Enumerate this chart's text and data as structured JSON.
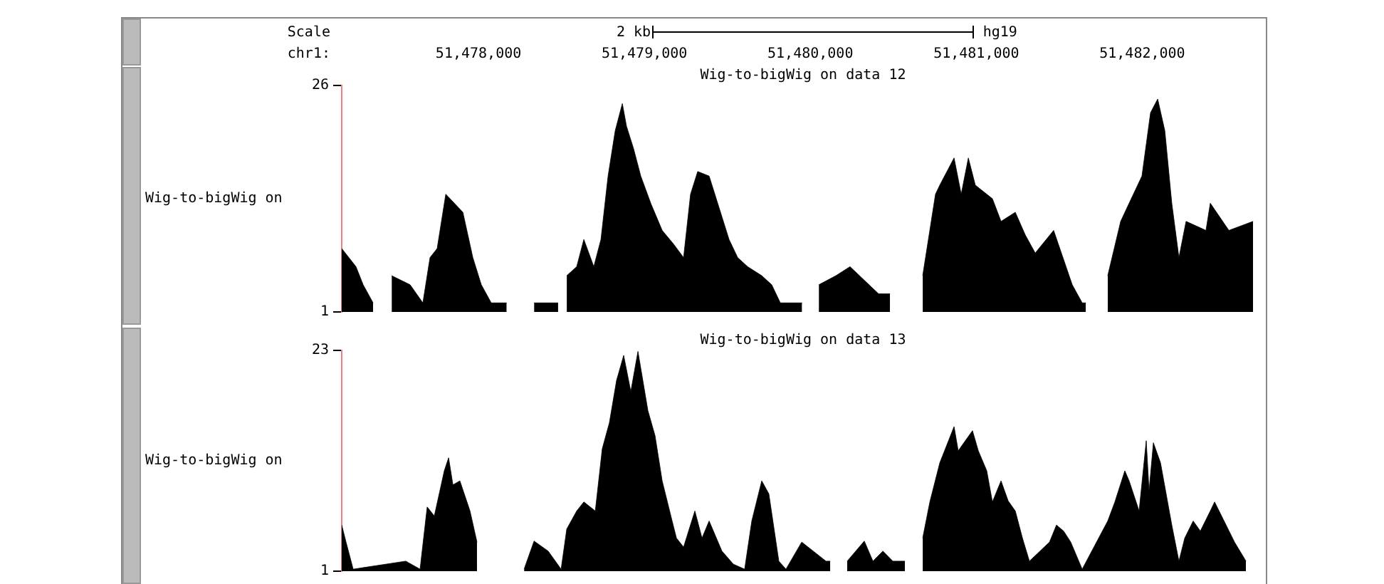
{
  "chart_data": [
    {
      "type": "area",
      "title": "Wig-to-bigWig on data 12",
      "xlabel": "chr1:",
      "ylabel": "Wig-to-bigWig on",
      "annotations": [
        "Scale",
        "2 kb",
        "hg19"
      ],
      "xlim": [
        51477176,
        51482736
      ],
      "xticks": [
        {
          "value": 51478000,
          "label": "51,478,000"
        },
        {
          "value": 51479000,
          "label": "51,479,000"
        },
        {
          "value": 51480000,
          "label": "51,480,000"
        },
        {
          "value": 51481000,
          "label": "51,481,000"
        },
        {
          "value": 51482000,
          "label": "51,482,000"
        }
      ],
      "ylim": [
        1,
        26
      ],
      "yticks": [
        1,
        26
      ],
      "x": [
        51477176,
        51477262,
        51477305,
        51477365,
        51477417,
        51477477,
        51477588,
        51477665,
        51477708,
        51477751,
        51477803,
        51477906,
        51477966,
        51478017,
        51478077,
        51478170,
        51478189,
        51478335,
        51478480,
        51478498,
        51478532,
        51478592,
        51478635,
        51478695,
        51478738,
        51478781,
        51478824,
        51478867,
        51478892,
        51478935,
        51478978,
        51479038,
        51479107,
        51479175,
        51479236,
        51479278,
        51479321,
        51479390,
        51479450,
        51479510,
        51479562,
        51479622,
        51479707,
        51479767,
        51479819,
        51479950,
        51479965,
        51480051,
        51480154,
        51480239,
        51480411,
        51480480,
        51480497,
        51480677,
        51480754,
        51480780,
        51480866,
        51480909,
        51480952,
        51480994,
        51481097,
        51481149,
        51481235,
        51481295,
        51481355,
        51481466,
        51481578,
        51481638,
        51481660,
        51481681,
        51481792,
        51481870,
        51481921,
        51481998,
        51482050,
        51482093,
        51482136,
        51482178,
        51482221,
        51482264,
        51482384,
        51482410,
        51482522,
        51482668
      ],
      "series": [
        {
          "color": "#000000",
          "values": [
            8,
            6,
            4,
            2,
            null,
            5,
            4,
            2,
            7,
            8,
            14,
            12,
            7,
            4,
            2,
            2,
            null,
            2,
            2,
            null,
            5,
            6,
            9,
            6,
            9,
            16,
            21,
            24,
            21.5,
            19,
            16,
            13,
            10,
            8.5,
            7,
            14,
            16.5,
            16,
            12.5,
            9,
            7,
            6,
            5,
            4,
            2,
            2,
            null,
            4,
            5,
            6,
            3,
            3,
            null,
            5,
            14,
            15,
            18,
            14,
            18,
            15,
            13.5,
            11,
            12,
            9.5,
            7.5,
            10,
            4,
            2,
            2,
            null,
            5,
            11,
            13,
            16,
            23,
            24.5,
            21,
            13,
            7,
            11,
            10,
            13,
            10,
            11
          ]
        }
      ]
    },
    {
      "type": "area",
      "title": "Wig-to-bigWig on data 13",
      "ylabel": "Wig-to-bigWig on",
      "tick_labels": "y",
      "xlim": [
        51477176,
        51482736
      ],
      "ylim": [
        1,
        23
      ],
      "yticks": [
        1,
        23
      ],
      "x": [
        51477176,
        51477202,
        51477245,
        51477562,
        51477648,
        51477691,
        51477734,
        51477794,
        51477820,
        51477846,
        51477888,
        51477949,
        51477991,
        51478017,
        51478275,
        51478335,
        51478420,
        51478498,
        51478532,
        51478592,
        51478635,
        51478704,
        51478746,
        51478789,
        51478832,
        51478875,
        51478918,
        51478961,
        51479021,
        51479064,
        51479107,
        51479167,
        51479193,
        51479236,
        51479304,
        51479347,
        51479390,
        51479467,
        51479536,
        51479604,
        51479647,
        51479707,
        51479750,
        51479810,
        51479853,
        51479948,
        51480094,
        51480120,
        51480136,
        51480222,
        51480325,
        51480377,
        51480437,
        51480497,
        51480570,
        51480591,
        51480677,
        51480720,
        51480780,
        51480866,
        51480891,
        51480934,
        51480977,
        51481012,
        51481063,
        51481097,
        51481149,
        51481192,
        51481235,
        51481278,
        51481320,
        51481441,
        51481483,
        51481526,
        51481569,
        51481638,
        51481792,
        51481835,
        51481895,
        51481921,
        51481981,
        51482024,
        51482041,
        51482067,
        51482110,
        51482178,
        51482221,
        51482256,
        51482307,
        51482350,
        51482410,
        51482436,
        51482556,
        51482625
      ],
      "series": [
        {
          "color": "#000000",
          "values": [
            5.6,
            3.9,
            1.2,
            2,
            1.2,
            7.4,
            6.5,
            11,
            12.3,
            9.6,
            10,
            7,
            3.9,
            null,
            1.2,
            4,
            3,
            1.2,
            5.2,
            7,
            7.9,
            7,
            13.2,
            15.8,
            20,
            22.5,
            18.9,
            22.9,
            17,
            14.5,
            10,
            6,
            4.3,
            3.4,
            7,
            4.3,
            6,
            3,
            1.7,
            1.2,
            6,
            10,
            8.7,
            2,
            1.2,
            3.9,
            2,
            2,
            null,
            2,
            4,
            2,
            3,
            2,
            2,
            null,
            4.3,
            7.9,
            11.8,
            15.4,
            13,
            14,
            15,
            13,
            11,
            7.9,
            10,
            8,
            7,
            4.3,
            2,
            3.9,
            5.6,
            5,
            3.9,
            1.2,
            6,
            7.9,
            11,
            10,
            7,
            14,
            9,
            13.8,
            11.8,
            5.6,
            2,
            4.3,
            6,
            5,
            7,
            7.9,
            3.9,
            2
          ]
        }
      ]
    }
  ]
}
